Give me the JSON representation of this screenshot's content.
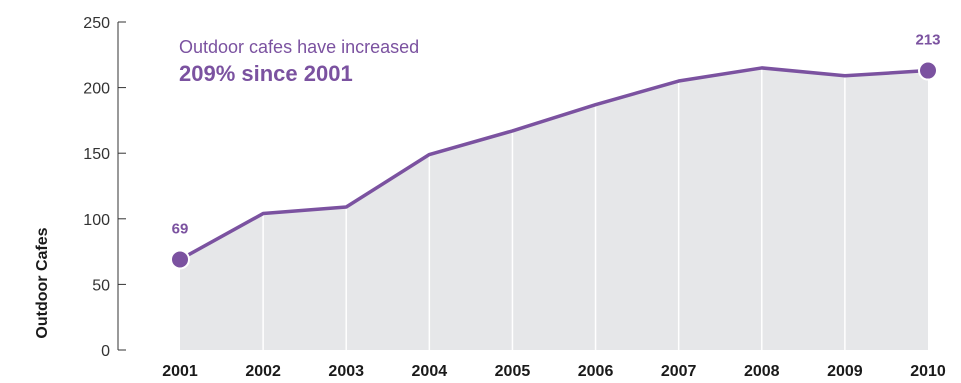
{
  "chart_data": {
    "type": "area",
    "categories": [
      "2001",
      "2002",
      "2003",
      "2004",
      "2005",
      "2006",
      "2007",
      "2008",
      "2009",
      "2010"
    ],
    "values": [
      69,
      104,
      109,
      149,
      167,
      187,
      205,
      215,
      209,
      213
    ],
    "ylabel": "Outdoor Cafes",
    "ylim": [
      0,
      250
    ],
    "yticks": [
      "0",
      "50",
      "100",
      "150",
      "200",
      "250"
    ],
    "annotation": {
      "line1": "Outdoor cafes have increased",
      "line2": "209% since 2001"
    },
    "data_labels": [
      {
        "category": "2001",
        "text": "69"
      },
      {
        "category": "2010",
        "text": "213"
      }
    ],
    "colors": {
      "line": "#7b52a0",
      "area": "#e6e7e9",
      "gridline": "#ffffff",
      "axis": "#333333"
    }
  }
}
